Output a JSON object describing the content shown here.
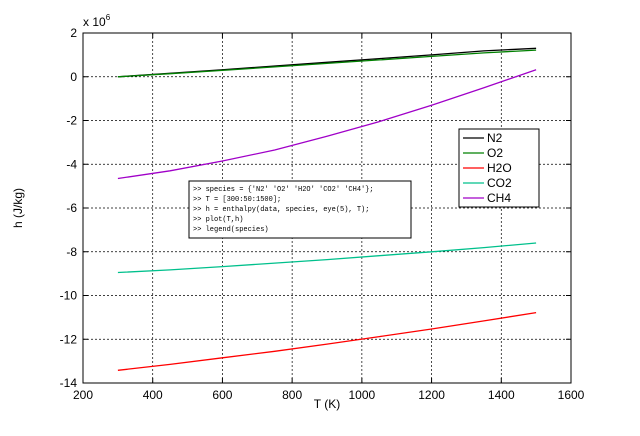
{
  "chart_data": {
    "type": "line",
    "title": "",
    "xlabel": "T (K)",
    "ylabel": "h (J/kg)",
    "y_multiplier_label": "x 10",
    "y_multiplier_exponent": "6",
    "xlim": [
      200,
      1600
    ],
    "ylim": [
      -14,
      2
    ],
    "xticks": [
      200,
      400,
      600,
      800,
      1000,
      1200,
      1400,
      1600
    ],
    "yticks": [
      -14,
      -12,
      -10,
      -8,
      -6,
      -4,
      -2,
      0,
      2
    ],
    "grid": true,
    "legend_position": "right",
    "x": [
      300,
      450,
      600,
      750,
      900,
      1050,
      1200,
      1350,
      1500
    ],
    "series": [
      {
        "name": "N2",
        "color": "#000000",
        "values": [
          0.0,
          0.16,
          0.32,
          0.49,
          0.66,
          0.83,
          1.0,
          1.18,
          1.3
        ]
      },
      {
        "name": "O2",
        "color": "#008000",
        "values": [
          0.0,
          0.14,
          0.29,
          0.45,
          0.61,
          0.77,
          0.93,
          1.09,
          1.22
        ]
      },
      {
        "name": "H2O",
        "color": "#ff0000",
        "values": [
          -13.42,
          -13.15,
          -12.85,
          -12.55,
          -12.22,
          -11.88,
          -11.53,
          -11.16,
          -10.78
        ]
      },
      {
        "name": "CO2",
        "color": "#00c08c",
        "values": [
          -8.95,
          -8.83,
          -8.68,
          -8.52,
          -8.36,
          -8.18,
          -8.0,
          -7.81,
          -7.6
        ]
      },
      {
        "name": "CH4",
        "color": "#a000c8",
        "values": [
          -4.65,
          -4.3,
          -3.85,
          -3.35,
          -2.72,
          -2.05,
          -1.3,
          -0.5,
          0.32
        ]
      }
    ],
    "annotation_lines": [
      ">> species = {'N2' 'O2' 'H2O' 'CO2' 'CH4'};",
      ">> T = [300:50:1500];",
      ">> h = enthalpy(data, species, eye(5), T);",
      ">> plot(T,h)",
      ">> legend(species)"
    ]
  }
}
